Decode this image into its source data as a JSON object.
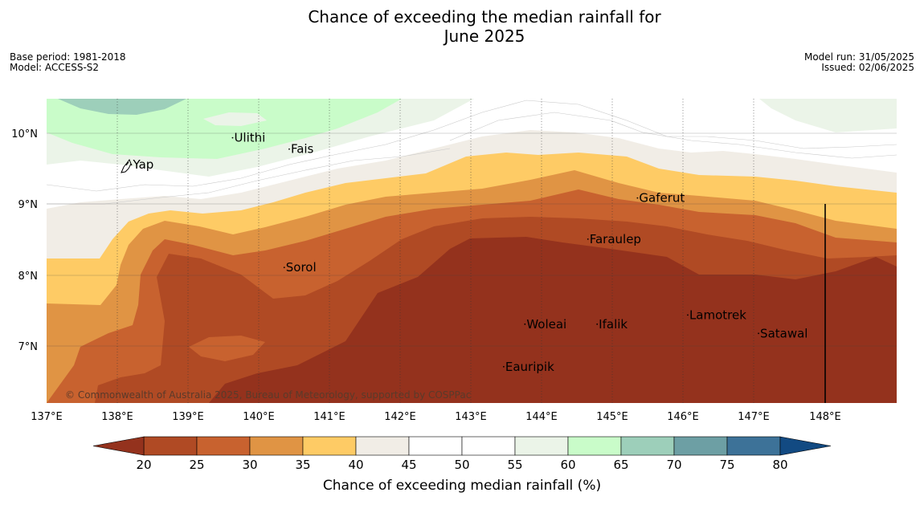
{
  "title": {
    "line1": "Chance of exceeding the median rainfall for",
    "line2": "June 2025"
  },
  "meta_left": {
    "base_period": "Base period: 1981-2018",
    "model": "Model: ACCESS-S2"
  },
  "meta_right": {
    "model_run": "Model run: 31/05/2025",
    "issued": "Issued: 02/06/2025"
  },
  "copyright": "© Commonwealth of Australia 2025, Bureau of Meteorology, supported by COSPPac",
  "axes": {
    "x_ticks": [
      "137°E",
      "138°E",
      "139°E",
      "140°E",
      "141°E",
      "142°E",
      "143°E",
      "144°E",
      "145°E",
      "146°E",
      "147°E",
      "148°E"
    ],
    "y_ticks": [
      "10°N",
      "9°N",
      "8°N",
      "7°N"
    ]
  },
  "places": [
    {
      "name": "Ulithi",
      "lon": 139.65,
      "lat": 9.88
    },
    {
      "name": "Fais",
      "lon": 140.45,
      "lat": 9.72
    },
    {
      "name": "Yap",
      "lon": 138.22,
      "lat": 9.5
    },
    {
      "name": "Gaferut",
      "lon": 145.37,
      "lat": 9.03
    },
    {
      "name": "Faraulep",
      "lon": 144.67,
      "lat": 8.45
    },
    {
      "name": "Sorol",
      "lon": 140.38,
      "lat": 8.05
    },
    {
      "name": "Lamotrek",
      "lon": 146.08,
      "lat": 7.38
    },
    {
      "name": "Woleai",
      "lon": 143.78,
      "lat": 7.25
    },
    {
      "name": "Ifalik",
      "lon": 144.8,
      "lat": 7.25
    },
    {
      "name": "Satawal",
      "lon": 147.08,
      "lat": 7.12
    },
    {
      "name": "Eauripik",
      "lon": 143.48,
      "lat": 6.65
    }
  ],
  "colorbar": {
    "title": "Chance of exceeding median rainfall (%)",
    "labels": [
      "20",
      "25",
      "30",
      "35",
      "40",
      "45",
      "50",
      "55",
      "60",
      "65",
      "70",
      "75",
      "80"
    ],
    "colors": [
      "#94321d",
      "#b04a24",
      "#c8622f",
      "#e09444",
      "#fecb65",
      "#f1ede6",
      "#ffffff",
      "#ffffff",
      "#ebf4e8",
      "#c9fcc9",
      "#9dcfba",
      "#6d9fa4",
      "#3d7298",
      "#124a82"
    ]
  },
  "colors": {
    "c20": "#94321d",
    "c25": "#b04a24",
    "c30": "#c8622f",
    "c35": "#e09444",
    "c40": "#fecb65",
    "c45": "#f1ede6",
    "c50": "#ffffff",
    "c55": "#ebf4e8",
    "c60": "#c9fcc9",
    "c65": "#9dcfba"
  }
}
